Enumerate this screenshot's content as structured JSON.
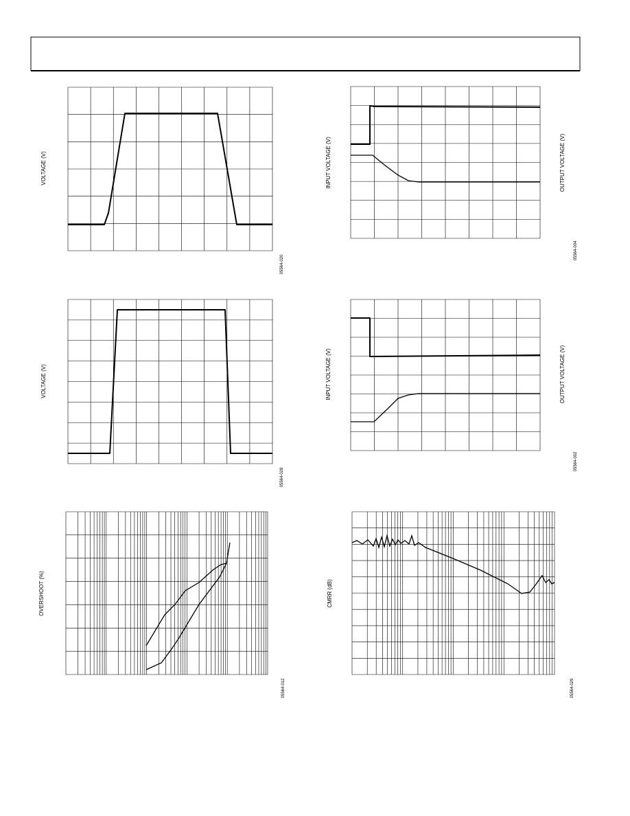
{
  "figures": [
    {
      "y_label": "VOLTAGE (V)",
      "code": "05564-020"
    },
    {
      "y_label": "INPUT VOLTAGE (V)",
      "y2_label": "OUTPUT VOLTAGE (V)",
      "code": "05564-004"
    },
    {
      "y_label": "VOLTAGE (V)",
      "code": "05564-028"
    },
    {
      "y_label": "INPUT VOLTAGE (V)",
      "y2_label": "OUTPUT VOLTAGE (V)",
      "code": "05564-002"
    },
    {
      "y_label": "OVERSHOOT (%)",
      "code": "05564-012"
    },
    {
      "y_label": "CMRR (dB)",
      "code": "05564-029"
    }
  ]
}
